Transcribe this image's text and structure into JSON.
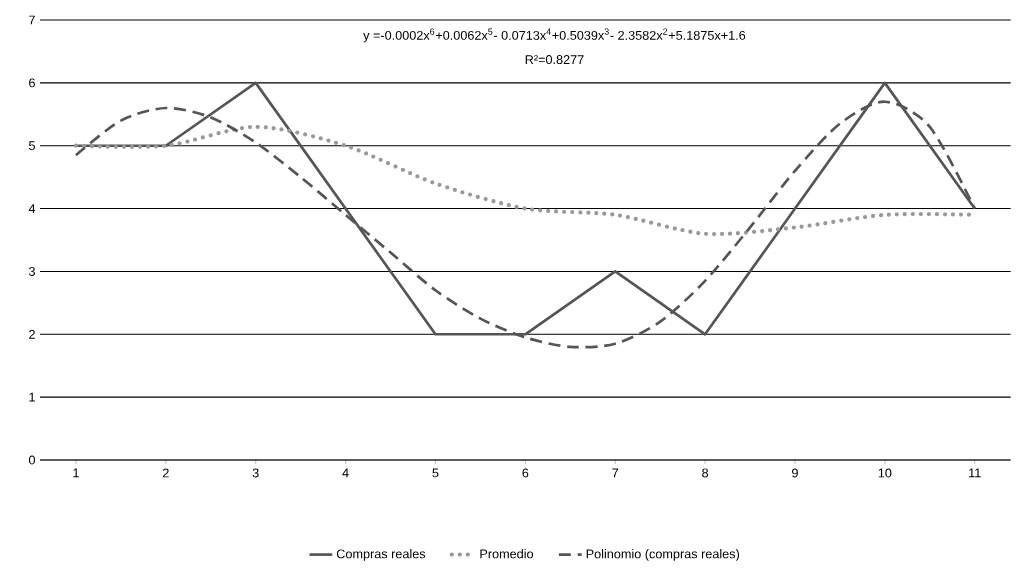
{
  "chart_data": {
    "type": "line",
    "annotations": [
      "y =-0.0002x$^{6}$+0.0062x$^{5}$- 0.0713x$^{4}$+0.5039x$^{3}$- 2.3582x$^{2}$+5.1875x+1.6",
      "R²=0.8277"
    ],
    "x": [
      1,
      2,
      3,
      4,
      5,
      6,
      7,
      8,
      9,
      10,
      11
    ],
    "series": [
      {
        "name": "Compras reales",
        "color": "#555555",
        "line_style": "solid",
        "values": [
          5,
          5,
          6,
          4,
          2,
          2,
          3,
          2,
          4,
          6,
          4
        ]
      },
      {
        "name": "Promedio",
        "color": "#999999",
        "line_style": "dotted",
        "values": [
          5,
          5,
          5.3,
          5,
          4.4,
          4,
          3.9,
          3.6,
          3.7,
          3.9,
          3.9
        ]
      },
      {
        "name": "Polinomio (compras reales)",
        "color": "#555555",
        "line_style": "dashed",
        "x": [
          1,
          1.5,
          2,
          2.5,
          3,
          3.5,
          4,
          4.5,
          5,
          5.5,
          6,
          6.5,
          7,
          7.5,
          8,
          8.5,
          9,
          9.5,
          10,
          10.5,
          11
        ],
        "values": [
          4.85,
          5.4,
          5.6,
          5.45,
          5.05,
          4.5,
          3.9,
          3.3,
          2.7,
          2.25,
          1.95,
          1.8,
          1.85,
          2.2,
          2.85,
          3.7,
          4.6,
          5.35,
          5.7,
          5.3,
          4.0
        ]
      }
    ],
    "xlim": [
      0.6,
      11.4
    ],
    "ylim": [
      0,
      7
    ],
    "xticks": [
      1,
      2,
      3,
      4,
      5,
      6,
      7,
      8,
      9,
      10,
      11
    ],
    "yticks": [
      0,
      1,
      2,
      3,
      4,
      5,
      6,
      7
    ],
    "grid": "y",
    "legend": "bottom"
  }
}
